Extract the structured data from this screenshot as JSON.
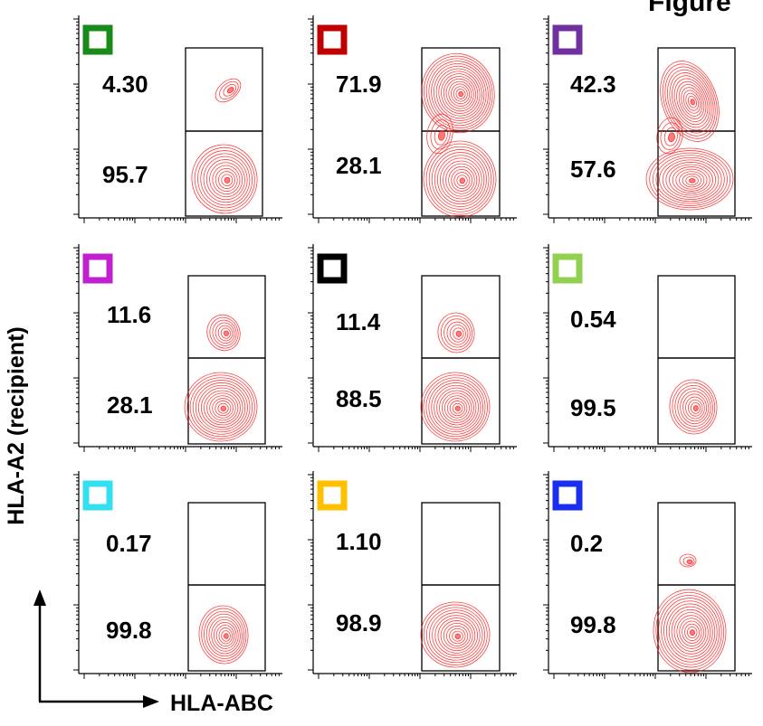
{
  "figure": {
    "title": "Figure"
  },
  "axes": {
    "x_label": "HLA-ABC",
    "y_label": "HLA-A2 (recipient)"
  },
  "chart_data": {
    "type": "scatter",
    "plot_style": "flow-cytometry-contour-grid",
    "xlabel": "HLA-ABC",
    "ylabel": "HLA-A2 (recipient)",
    "rows": 3,
    "cols": 3,
    "panels": [
      {
        "marker_color": "#1a8a1a",
        "upper_gate_label": "4.30",
        "lower_gate_label": "95.7",
        "upper_percent": 4.3,
        "lower_percent": 95.7
      },
      {
        "marker_color": "#c00000",
        "upper_gate_label": "71.9",
        "lower_gate_label": "28.1",
        "upper_percent": 71.9,
        "lower_percent": 28.1
      },
      {
        "marker_color": "#7030a0",
        "upper_gate_label": "42.3",
        "lower_gate_label": "57.6",
        "upper_percent": 42.3,
        "lower_percent": 57.6
      },
      {
        "marker_color": "#c020d0",
        "upper_gate_label": "11.6",
        "lower_gate_label": "28.1",
        "upper_percent": 11.6,
        "lower_percent": 28.1
      },
      {
        "marker_color": "#000000",
        "upper_gate_label": "11.4",
        "lower_gate_label": "88.5",
        "upper_percent": 11.4,
        "lower_percent": 88.5
      },
      {
        "marker_color": "#92d050",
        "upper_gate_label": "0.54",
        "lower_gate_label": "99.5",
        "upper_percent": 0.54,
        "lower_percent": 99.5
      },
      {
        "marker_color": "#33e0f0",
        "upper_gate_label": "0.17",
        "lower_gate_label": "99.8",
        "upper_percent": 0.17,
        "lower_percent": 99.8
      },
      {
        "marker_color": "#ffc000",
        "upper_gate_label": "1.10",
        "lower_gate_label": "98.9",
        "upper_percent": 1.1,
        "lower_percent": 98.9
      },
      {
        "marker_color": "#1a2ef0",
        "upper_gate_label": "0.2",
        "lower_gate_label": "99.8",
        "upper_percent": 0.2,
        "lower_percent": 99.8
      }
    ],
    "contour_color": "#ff2020",
    "grid": false,
    "legend": "none"
  }
}
